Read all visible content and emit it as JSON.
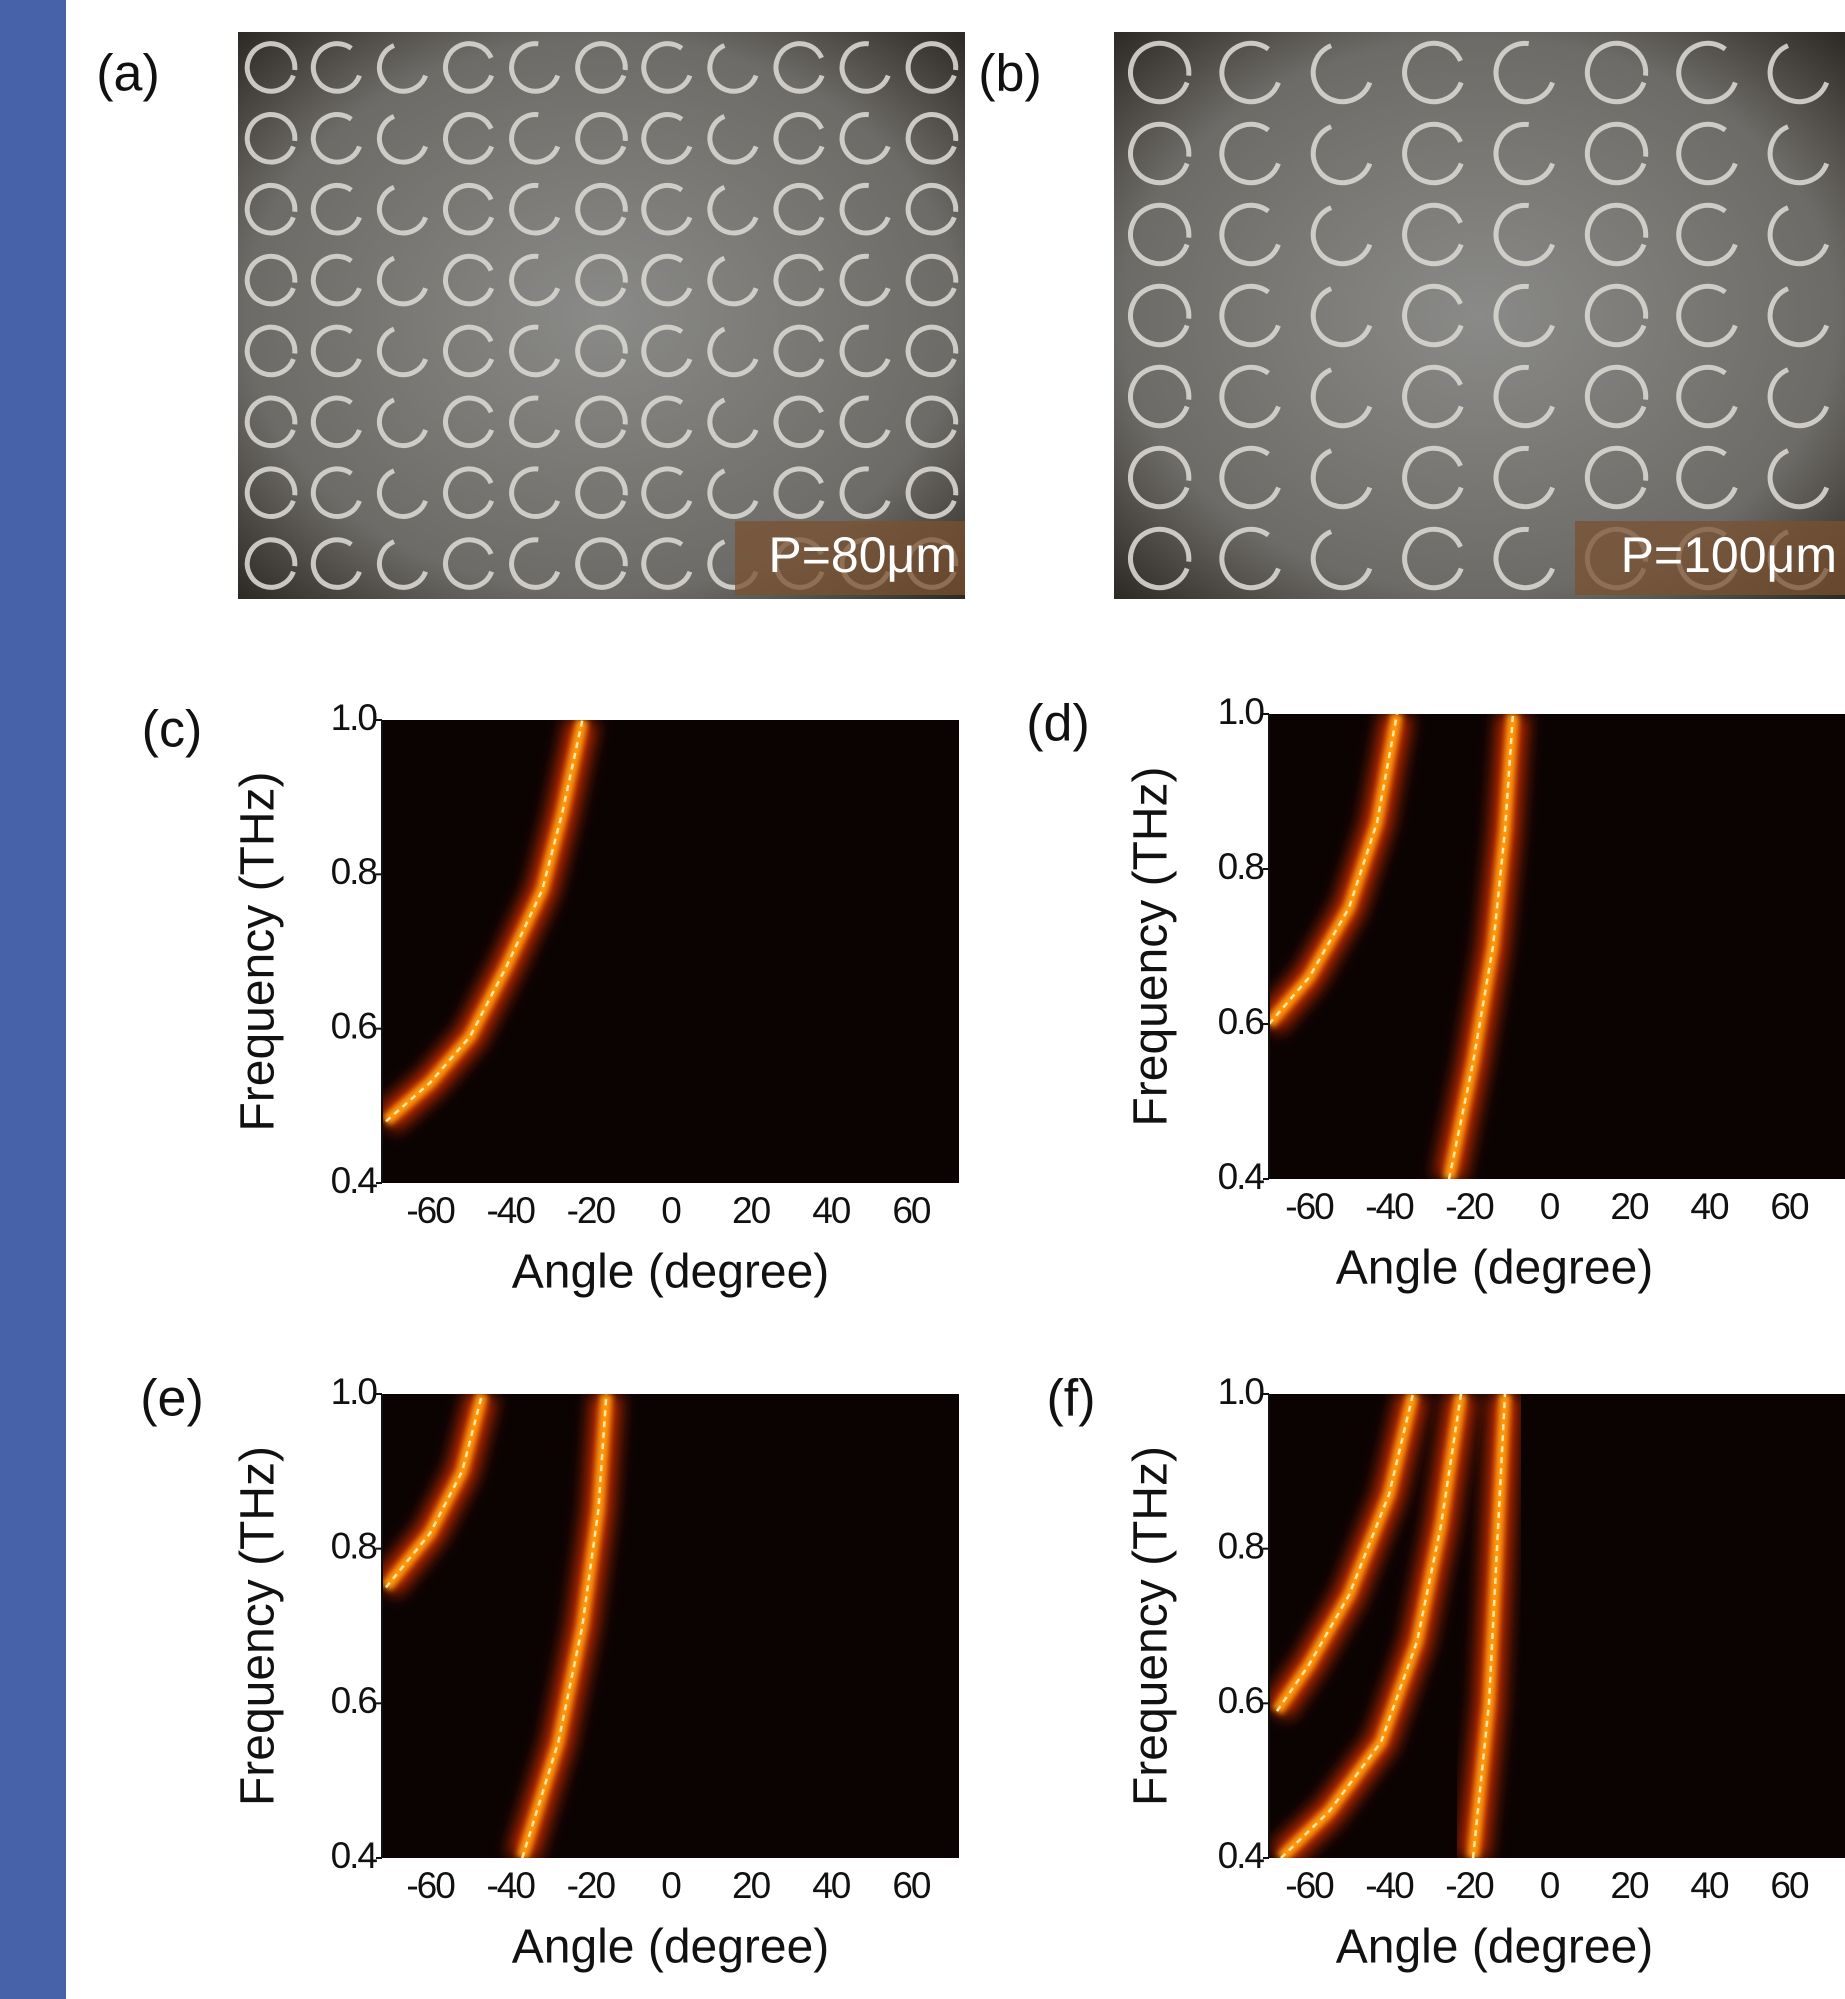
{
  "photos": [
    {
      "label": "(a)",
      "caption": "P=80μm"
    },
    {
      "label": "(b)",
      "caption": "P=100μm"
    }
  ],
  "chart_data": [
    {
      "type": "line",
      "panel": "(c)",
      "xlabel": "Angle (degree)",
      "ylabel": "Frequency (THz)",
      "xlim": [
        -72,
        72
      ],
      "ylim": [
        0.4,
        1.0
      ],
      "xticks": [
        -60,
        -40,
        -20,
        0,
        20,
        40,
        60
      ],
      "yticks": [
        {
          "value": 0.4,
          "label": "0.4"
        },
        {
          "value": 0.6,
          "label": "0.6"
        },
        {
          "value": 0.8,
          "label": "0.8"
        },
        {
          "value": 1.0,
          "label": "1.0"
        }
      ],
      "series": [
        {
          "color": "#ffe8a0",
          "x": [
            -71,
            -60,
            -50,
            -41,
            -32,
            -27,
            -22
          ],
          "values": [
            0.48,
            0.53,
            0.59,
            0.68,
            0.78,
            0.88,
            1.0
          ]
        }
      ]
    },
    {
      "type": "line",
      "panel": "(d)",
      "xlabel": "Angle (degree)",
      "ylabel": "Frequency (THz)",
      "xlim": [
        -70,
        74
      ],
      "ylim": [
        0.4,
        1.0
      ],
      "xticks": [
        -60,
        -40,
        -20,
        0,
        20,
        40,
        60
      ],
      "yticks": [
        {
          "value": 0.4,
          "label": "0.4"
        },
        {
          "value": 0.6,
          "label": "0.6"
        },
        {
          "value": 0.8,
          "label": "0.8"
        },
        {
          "value": 1.0,
          "label": "1.0"
        }
      ],
      "series": [
        {
          "color": "#ffe8a0",
          "x": [
            -70,
            -60,
            -50,
            -43,
            -38
          ],
          "values": [
            0.6,
            0.66,
            0.75,
            0.86,
            1.0
          ]
        },
        {
          "color": "#ffe8a0",
          "x": [
            -25,
            -19,
            -14,
            -11,
            -9
          ],
          "values": [
            0.4,
            0.55,
            0.7,
            0.85,
            1.0
          ]
        }
      ]
    },
    {
      "type": "line",
      "panel": "(e)",
      "xlabel": "Angle (degree)",
      "ylabel": "Frequency (THz)",
      "xlim": [
        -72,
        72
      ],
      "ylim": [
        0.4,
        1.0
      ],
      "xticks": [
        -60,
        -40,
        -20,
        0,
        20,
        40,
        60
      ],
      "yticks": [
        {
          "value": 0.4,
          "label": "0.4"
        },
        {
          "value": 0.6,
          "label": "0.6"
        },
        {
          "value": 0.8,
          "label": "0.8"
        },
        {
          "value": 1.0,
          "label": "1.0"
        }
      ],
      "series": [
        {
          "color": "#ffe8a0",
          "x": [
            -71,
            -60,
            -52,
            -47
          ],
          "values": [
            0.75,
            0.82,
            0.9,
            1.0
          ]
        },
        {
          "color": "#ffe8a0",
          "x": [
            -37,
            -28,
            -22,
            -18,
            -16
          ],
          "values": [
            0.4,
            0.55,
            0.7,
            0.85,
            1.0
          ]
        }
      ]
    },
    {
      "type": "line",
      "panel": "(f)",
      "xlabel": "Angle (degree)",
      "ylabel": "Frequency (THz)",
      "xlim": [
        -70,
        74
      ],
      "ylim": [
        0.4,
        1.0
      ],
      "xticks": [
        -60,
        -40,
        -20,
        0,
        20,
        40,
        60
      ],
      "yticks": [
        {
          "value": 0.4,
          "label": "0.4"
        },
        {
          "value": 0.6,
          "label": "0.6"
        },
        {
          "value": 0.8,
          "label": "0.8"
        },
        {
          "value": 1.0,
          "label": "1.0"
        }
      ],
      "series": [
        {
          "color": "#ffe8a0",
          "x": [
            -68,
            -60,
            -50,
            -40,
            -34
          ],
          "values": [
            0.59,
            0.65,
            0.74,
            0.87,
            1.0
          ]
        },
        {
          "color": "#ffe8a0",
          "x": [
            -67,
            -55,
            -42,
            -33,
            -27,
            -22
          ],
          "values": [
            0.4,
            0.46,
            0.55,
            0.68,
            0.83,
            1.0
          ]
        },
        {
          "color": "#ffe8a0",
          "x": [
            -19,
            -15,
            -13,
            -11
          ],
          "values": [
            0.4,
            0.6,
            0.8,
            1.0
          ]
        }
      ]
    }
  ]
}
